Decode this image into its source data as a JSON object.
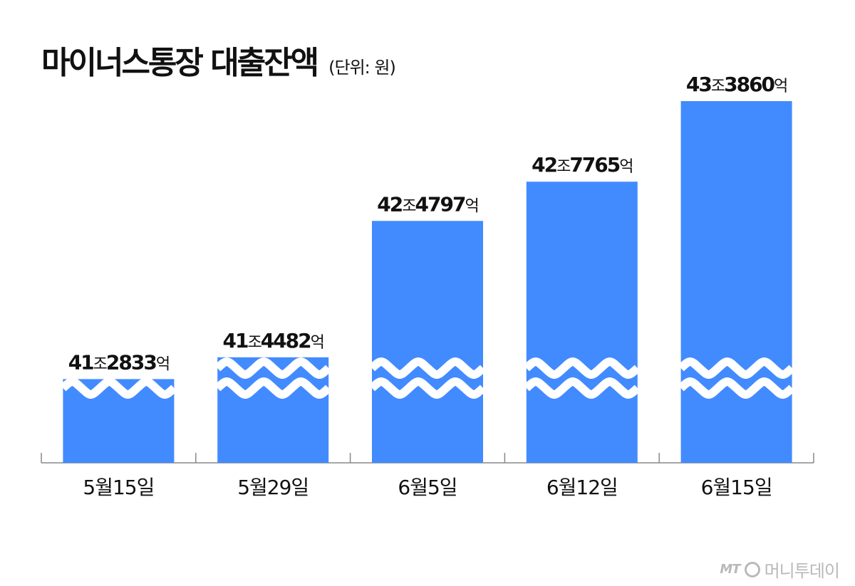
{
  "title": "마이너스통장 대출잔액",
  "unit": "(단위: 원)",
  "chart_data": {
    "type": "bar",
    "title": "마이너스통장 대출잔액",
    "unit": "(단위: 원)",
    "categories": [
      "5월15일",
      "5월29일",
      "6월5일",
      "6월12일",
      "6월15일"
    ],
    "values": [
      41.2833,
      41.4482,
      42.4797,
      42.7765,
      43.386
    ],
    "value_unit": "조 원",
    "labels": [
      {
        "a": "41",
        "b": "조",
        "c": "2833",
        "d": "억"
      },
      {
        "a": "41",
        "b": "조",
        "c": "4482",
        "d": "억"
      },
      {
        "a": "42",
        "b": "조",
        "c": "4797",
        "d": "억"
      },
      {
        "a": "42",
        "b": "조",
        "c": "7765",
        "d": "억"
      },
      {
        "a": "43",
        "b": "조",
        "c": "3860",
        "d": "억"
      }
    ],
    "axis_break": true,
    "grid": false,
    "bar_color": "#428BFF"
  },
  "watermark": {
    "mark": "MT",
    "name": "머니투데이"
  }
}
